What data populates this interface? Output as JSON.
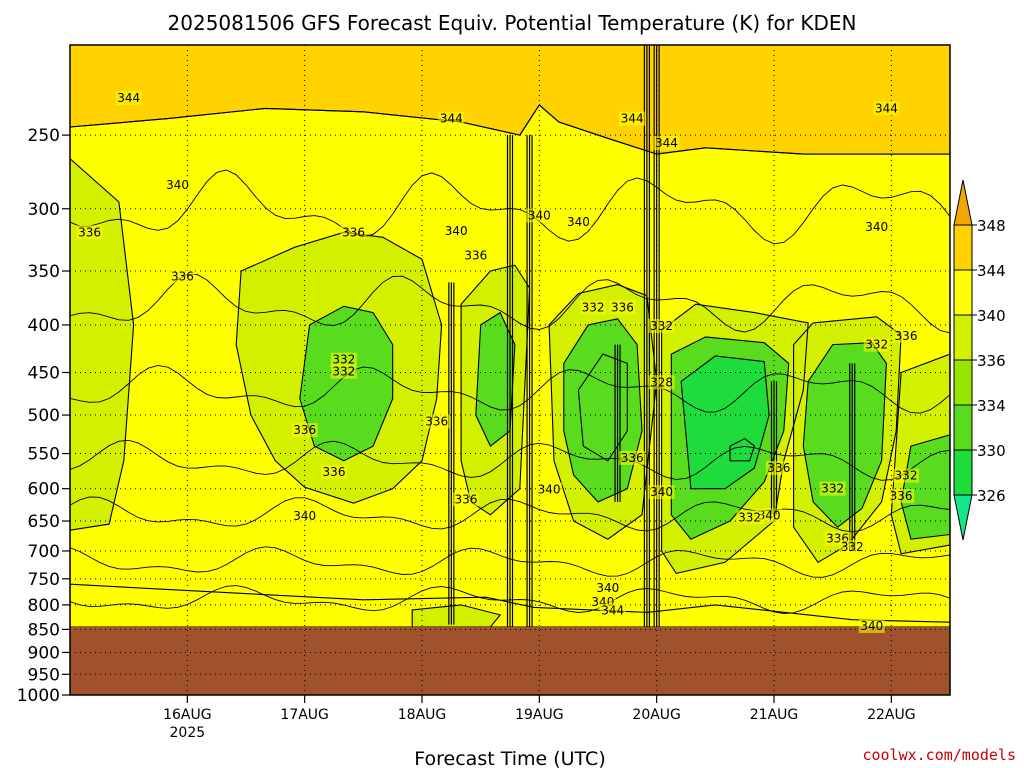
{
  "chart_data": {
    "type": "heatmap",
    "title": "2025081506 GFS Forecast Equiv. Potential Temperature (K) for KDEN",
    "xlabel": "Forecast Time (UTC)",
    "ylabel": "",
    "credit": "coolwx.com/models",
    "y_axis": {
      "scale": "pressure (hPa), inverted",
      "range": [
        1000,
        200
      ],
      "ticks": [
        250,
        300,
        350,
        400,
        450,
        500,
        550,
        600,
        650,
        700,
        750,
        800,
        850,
        900,
        950,
        1000
      ]
    },
    "x_axis": {
      "range": [
        "2025-08-15T06",
        "2025-08-22T18"
      ],
      "ticks": [
        {
          "label": "16AUG",
          "sub": "2025",
          "hours": 24
        },
        {
          "label": "17AUG",
          "sub": "",
          "hours": 48
        },
        {
          "label": "18AUG",
          "sub": "",
          "hours": 72
        },
        {
          "label": "19AUG",
          "sub": "",
          "hours": 96
        },
        {
          "label": "20AUG",
          "sub": "",
          "hours": 120
        },
        {
          "label": "21AUG",
          "sub": "",
          "hours": 144
        },
        {
          "label": "22AUG",
          "sub": "",
          "hours": 168
        }
      ]
    },
    "grid": true,
    "ground_level_hPa": 845,
    "ground_color": "#a0522d",
    "colorbar": {
      "labels": [
        "348",
        "344",
        "340",
        "336",
        "334",
        "330",
        "326"
      ],
      "bins": [
        {
          "min": 348,
          "color": "#f0a800"
        },
        {
          "min": 344,
          "color": "#ffd200"
        },
        {
          "min": 340,
          "color": "#ffff00"
        },
        {
          "min": 336,
          "color": "#d2f000"
        },
        {
          "min": 334,
          "color": "#96e600"
        },
        {
          "min": 330,
          "color": "#5adc1e"
        },
        {
          "min": 326,
          "color": "#1edc3c"
        },
        {
          "min": 0,
          "color": "#14e68c"
        }
      ]
    },
    "regions": [
      {
        "id": "band-344",
        "value": 344
      },
      {
        "id": "band-340",
        "value": 340
      },
      {
        "id": "blob-a-336",
        "value": 336
      },
      {
        "id": "blob-b-336",
        "value": 336
      },
      {
        "id": "blob-b-332",
        "value": 332
      },
      {
        "id": "blob-c-336",
        "value": 336
      },
      {
        "id": "blob-c-332",
        "value": 332
      },
      {
        "id": "blob-d-336",
        "value": 336
      },
      {
        "id": "blob-d-332",
        "value": 332
      },
      {
        "id": "blob-d-330",
        "value": 330
      },
      {
        "id": "blob-e-336",
        "value": 336
      },
      {
        "id": "blob-e-332",
        "value": 332
      },
      {
        "id": "blob-e-328",
        "value": 328
      },
      {
        "id": "blob-e-core",
        "value": 326
      },
      {
        "id": "blob-f-336",
        "value": 336
      },
      {
        "id": "blob-f-332",
        "value": 332
      },
      {
        "id": "blob-g-336",
        "value": 336
      },
      {
        "id": "blob-g-332",
        "value": 332
      },
      {
        "id": "low-340",
        "value": 340
      },
      {
        "id": "low-336",
        "value": 336
      }
    ],
    "contour_labels": [
      {
        "text": "344",
        "hours": 12,
        "p": 228
      },
      {
        "text": "344",
        "hours": 78,
        "p": 240
      },
      {
        "text": "344",
        "hours": 115,
        "p": 240
      },
      {
        "text": "344",
        "hours": 122,
        "p": 255
      },
      {
        "text": "344",
        "hours": 167,
        "p": 234
      },
      {
        "text": "340",
        "hours": 22,
        "p": 283
      },
      {
        "text": "340",
        "hours": 79,
        "p": 317
      },
      {
        "text": "340",
        "hours": 96,
        "p": 305
      },
      {
        "text": "340",
        "hours": 104,
        "p": 310
      },
      {
        "text": "340",
        "hours": 165,
        "p": 314
      },
      {
        "text": "336",
        "hours": 4,
        "p": 318
      },
      {
        "text": "336",
        "hours": 23,
        "p": 355
      },
      {
        "text": "336",
        "hours": 58,
        "p": 318
      },
      {
        "text": "336",
        "hours": 83,
        "p": 337
      },
      {
        "text": "336",
        "hours": 113,
        "p": 383
      },
      {
        "text": "336",
        "hours": 171,
        "p": 411
      },
      {
        "text": "332",
        "hours": 107,
        "p": 383
      },
      {
        "text": "332",
        "hours": 121,
        "p": 401
      },
      {
        "text": "332",
        "hours": 56,
        "p": 436
      },
      {
        "text": "332",
        "hours": 56,
        "p": 449
      },
      {
        "text": "332",
        "hours": 165,
        "p": 420
      },
      {
        "text": "328",
        "hours": 121,
        "p": 461
      },
      {
        "text": "336",
        "hours": 48,
        "p": 519
      },
      {
        "text": "336",
        "hours": 75,
        "p": 508
      },
      {
        "text": "336",
        "hours": 115,
        "p": 556
      },
      {
        "text": "336",
        "hours": 145,
        "p": 570
      },
      {
        "text": "336",
        "hours": 54,
        "p": 576
      },
      {
        "text": "336",
        "hours": 81,
        "p": 616
      },
      {
        "text": "340",
        "hours": 98,
        "p": 601
      },
      {
        "text": "340",
        "hours": 121,
        "p": 605
      },
      {
        "text": "332",
        "hours": 156,
        "p": 600
      },
      {
        "text": "336",
        "hours": 170,
        "p": 611
      },
      {
        "text": "332",
        "hours": 171,
        "p": 581
      },
      {
        "text": "340",
        "hours": 48,
        "p": 642
      },
      {
        "text": "340",
        "hours": 143,
        "p": 641
      },
      {
        "text": "332",
        "hours": 139,
        "p": 644
      },
      {
        "text": "336",
        "hours": 157,
        "p": 679
      },
      {
        "text": "332",
        "hours": 160,
        "p": 693
      },
      {
        "text": "340",
        "hours": 110,
        "p": 767
      },
      {
        "text": "340",
        "hours": 109,
        "p": 794
      },
      {
        "text": "344",
        "hours": 111,
        "p": 811
      },
      {
        "text": "340",
        "hours": 164,
        "p": 843
      }
    ],
    "vertical_lines": [
      {
        "hours": 78,
        "p_top": 360,
        "p_bottom": 840
      },
      {
        "hours": 90,
        "p_top": 250,
        "p_bottom": 845
      },
      {
        "hours": 94,
        "p_top": 250,
        "p_bottom": 845
      },
      {
        "hours": 112,
        "p_top": 420,
        "p_bottom": 620
      },
      {
        "hours": 118,
        "p_top": 200,
        "p_bottom": 845
      },
      {
        "hours": 120,
        "p_top": 200,
        "p_bottom": 845
      },
      {
        "hours": 144,
        "p_top": 460,
        "p_bottom": 640
      },
      {
        "hours": 160,
        "p_top": 440,
        "p_bottom": 700
      }
    ]
  }
}
